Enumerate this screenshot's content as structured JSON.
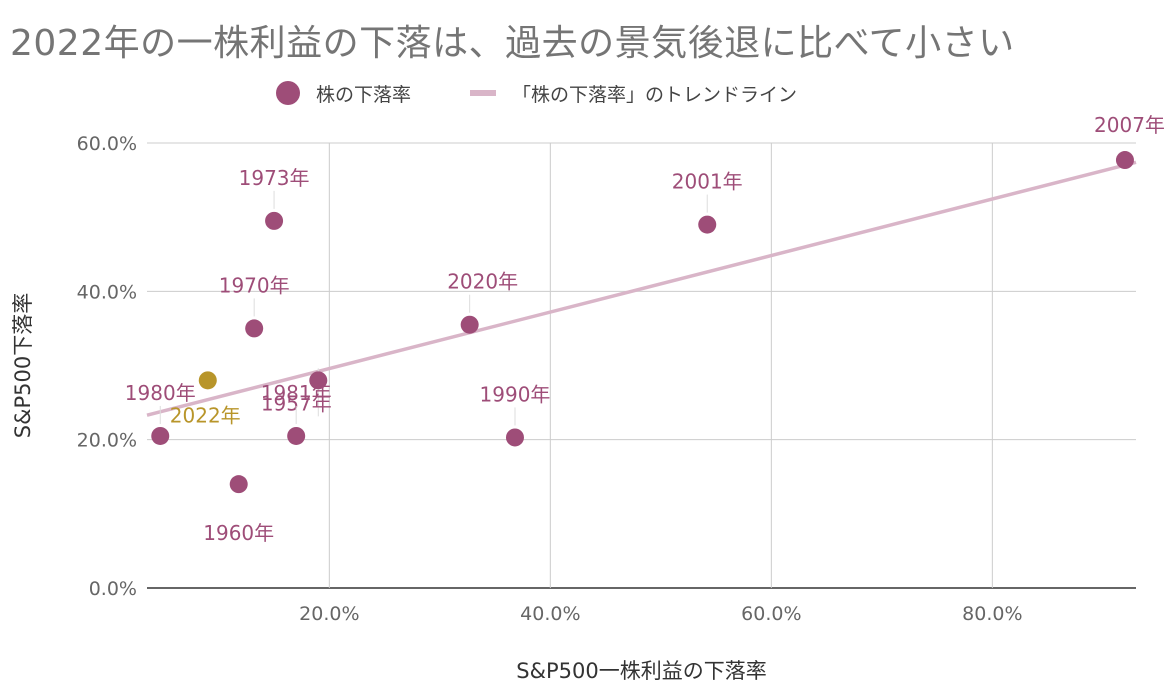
{
  "chart_data": {
    "type": "scatter",
    "title": "2022年の一株利益の下落は、過去の景気後退に比べて小さい",
    "xlabel": "S&P500一株利益の下落率",
    "ylabel": "S&P500下落率",
    "xlim": [
      0.035,
      0.93
    ],
    "ylim": [
      0,
      0.6
    ],
    "x_ticks": [
      0.2,
      0.4,
      0.6,
      0.8
    ],
    "x_tick_labels": [
      "20.0%",
      "40.0%",
      "60.0%",
      "80.0%"
    ],
    "y_ticks": [
      0,
      0.2,
      0.4,
      0.6
    ],
    "y_tick_labels": [
      "0.0%",
      "20.0%",
      "40.0%",
      "60.0%"
    ],
    "grid": true,
    "legend_position": "top",
    "legend": {
      "points_label": "株の下落率",
      "trend_label": "「株の下落率」のトレンドライン"
    },
    "colors": {
      "points": "#9e4d78",
      "highlight": "#b8952a",
      "trend": "#d9b5c8",
      "grid": "#cccccc"
    },
    "series": [
      {
        "name": "株の下落率",
        "points": [
          {
            "label": "1957年",
            "x": 0.19,
            "y": 0.28
          },
          {
            "label": "1960年",
            "x": 0.118,
            "y": 0.14
          },
          {
            "label": "1970年",
            "x": 0.132,
            "y": 0.35
          },
          {
            "label": "1973年",
            "x": 0.15,
            "y": 0.495
          },
          {
            "label": "1980年",
            "x": 0.047,
            "y": 0.205
          },
          {
            "label": "1981年",
            "x": 0.17,
            "y": 0.205
          },
          {
            "label": "1990年",
            "x": 0.368,
            "y": 0.203
          },
          {
            "label": "2001年",
            "x": 0.542,
            "y": 0.49
          },
          {
            "label": "2007年",
            "x": 0.92,
            "y": 0.577
          },
          {
            "label": "2020年",
            "x": 0.327,
            "y": 0.355
          },
          {
            "label": "2022年",
            "x": 0.09,
            "y": 0.28,
            "highlight": true
          }
        ]
      }
    ],
    "trendline": {
      "x": [
        0.035,
        0.93
      ],
      "y": [
        0.233,
        0.574
      ]
    }
  }
}
